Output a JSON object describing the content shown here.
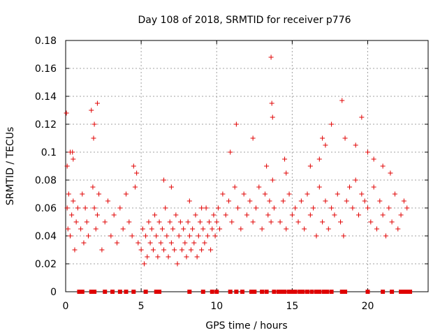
{
  "chart_data": {
    "type": "scatter",
    "title": "Day 108 of 2018, SRMTID for receiver p776",
    "xlabel": "GPS time / hours",
    "ylabel": "SRMTID / TECUs",
    "xlim": [
      0,
      24
    ],
    "ylim": [
      0,
      0.18
    ],
    "x_ticks": [
      0,
      5,
      10,
      15,
      20
    ],
    "x_tick_labels": [
      "0",
      "5",
      "10",
      "15",
      "20"
    ],
    "y_ticks": [
      0,
      0.02,
      0.04,
      0.06,
      0.08,
      0.1,
      0.12,
      0.14,
      0.16,
      0.18
    ],
    "y_tick_labels": [
      "0",
      "0.02",
      "0.04",
      "0.06",
      "0.08",
      "0.1",
      "0.12",
      "0.14",
      "0.16",
      "0.18"
    ],
    "grid": true,
    "marker": "+",
    "series_color": "#e00000",
    "series": [
      {
        "name": "SRMTID",
        "x": [
          0.05,
          0.1,
          0.15,
          0.2,
          0.3,
          0.4,
          0.45,
          0.5,
          0.6,
          0.7,
          0.8,
          1.0,
          1.1,
          1.2,
          1.3,
          1.4,
          1.5,
          1.7,
          1.8,
          1.85,
          1.9,
          2.0,
          2.1,
          2.2,
          2.4,
          2.6,
          2.8,
          3.0,
          3.2,
          3.4,
          3.6,
          3.8,
          4.0,
          4.2,
          4.4,
          4.6,
          4.8,
          5.0,
          5.1,
          5.2,
          5.3,
          5.4,
          5.5,
          5.6,
          5.7,
          5.8,
          5.9,
          6.0,
          6.1,
          6.2,
          6.3,
          6.4,
          6.5,
          6.6,
          6.7,
          6.8,
          6.9,
          7.0,
          7.1,
          7.2,
          7.3,
          7.4,
          7.5,
          7.6,
          7.7,
          7.8,
          7.9,
          8.0,
          8.1,
          8.2,
          8.3,
          8.4,
          8.5,
          8.6,
          8.7,
          8.8,
          8.9,
          9.0,
          9.1,
          9.2,
          9.3,
          9.4,
          9.5,
          9.6,
          9.7,
          9.8,
          9.9,
          10.0,
          10.1,
          10.2,
          10.4,
          10.6,
          10.8,
          11.0,
          11.2,
          11.4,
          11.6,
          11.8,
          12.0,
          12.2,
          12.4,
          12.6,
          12.8,
          13.0,
          13.2,
          13.4,
          13.5,
          13.6,
          13.7,
          13.8,
          14.2,
          14.4,
          14.6,
          14.8,
          15.0,
          15.2,
          15.4,
          15.6,
          15.8,
          16.0,
          16.2,
          16.4,
          16.6,
          16.8,
          17.0,
          17.2,
          17.4,
          17.6,
          17.8,
          18.0,
          18.2,
          18.4,
          18.6,
          18.8,
          19.0,
          19.2,
          19.4,
          19.6,
          19.8,
          20.0,
          20.2,
          20.4,
          20.6,
          20.8,
          21.0,
          21.2,
          21.4,
          21.6,
          21.8,
          22.0,
          22.2,
          22.4,
          22.6,
          0.1,
          0.3,
          0.5,
          1.9,
          2.1,
          4.5,
          4.7,
          6.5,
          7.0,
          8.2,
          9.0,
          10.9,
          11.3,
          12.4,
          13.3,
          13.6,
          13.65,
          13.7,
          14.5,
          14.6,
          16.2,
          16.8,
          17.0,
          17.2,
          17.6,
          18.3,
          18.5,
          19.2,
          19.6,
          20.0,
          20.4,
          21.0,
          21.5
        ],
        "y": [
          0.128,
          0.06,
          0.045,
          0.07,
          0.04,
          0.055,
          0.1,
          0.065,
          0.03,
          0.05,
          0.06,
          0.045,
          0.07,
          0.035,
          0.06,
          0.05,
          0.04,
          0.13,
          0.075,
          0.11,
          0.06,
          0.045,
          0.055,
          0.07,
          0.03,
          0.05,
          0.065,
          0.04,
          0.055,
          0.035,
          0.06,
          0.045,
          0.07,
          0.05,
          0.04,
          0.075,
          0.035,
          0.03,
          0.045,
          0.02,
          0.04,
          0.025,
          0.05,
          0.035,
          0.045,
          0.03,
          0.055,
          0.04,
          0.025,
          0.05,
          0.035,
          0.045,
          0.03,
          0.06,
          0.04,
          0.025,
          0.05,
          0.035,
          0.045,
          0.03,
          0.055,
          0.02,
          0.04,
          0.05,
          0.03,
          0.045,
          0.035,
          0.025,
          0.05,
          0.04,
          0.03,
          0.045,
          0.035,
          0.055,
          0.025,
          0.04,
          0.05,
          0.03,
          0.045,
          0.035,
          0.06,
          0.04,
          0.05,
          0.03,
          0.045,
          0.055,
          0.04,
          0.05,
          0.06,
          0.045,
          0.07,
          0.055,
          0.065,
          0.05,
          0.075,
          0.06,
          0.045,
          0.07,
          0.055,
          0.065,
          0.05,
          0.06,
          0.075,
          0.045,
          0.07,
          0.055,
          0.065,
          0.05,
          0.08,
          0.06,
          0.05,
          0.065,
          0.045,
          0.07,
          0.055,
          0.06,
          0.05,
          0.065,
          0.045,
          0.07,
          0.055,
          0.06,
          0.04,
          0.075,
          0.05,
          0.065,
          0.045,
          0.06,
          0.055,
          0.07,
          0.05,
          0.04,
          0.065,
          0.075,
          0.06,
          0.08,
          0.055,
          0.07,
          0.065,
          0.06,
          0.05,
          0.075,
          0.045,
          0.065,
          0.055,
          0.04,
          0.06,
          0.05,
          0.07,
          0.045,
          0.055,
          0.065,
          0.06,
          0.09,
          0.1,
          0.095,
          0.12,
          0.135,
          0.09,
          0.085,
          0.08,
          0.075,
          0.065,
          0.06,
          0.1,
          0.12,
          0.11,
          0.09,
          0.168,
          0.135,
          0.125,
          0.095,
          0.085,
          0.09,
          0.095,
          0.11,
          0.105,
          0.12,
          0.137,
          0.11,
          0.105,
          0.125,
          0.1,
          0.095,
          0.09,
          0.085
        ]
      }
    ],
    "zero_points_x": [
      0.9,
      1.1,
      1.7,
      1.9,
      2.6,
      3.1,
      3.6,
      4.0,
      4.5,
      5.3,
      6.0,
      6.2,
      8.2,
      9.1,
      9.7,
      10.0,
      10.9,
      11.3,
      11.7,
      12.3,
      12.5,
      13.0,
      13.3,
      13.8,
      14.1,
      14.2,
      14.4,
      14.5,
      14.8,
      15.0,
      15.2,
      15.5,
      15.7,
      16.0,
      16.3,
      16.6,
      16.8,
      17.1,
      17.3,
      17.6,
      18.3,
      18.5,
      20.0,
      21.0,
      21.6,
      22.2,
      22.4,
      22.6,
      22.8
    ]
  }
}
